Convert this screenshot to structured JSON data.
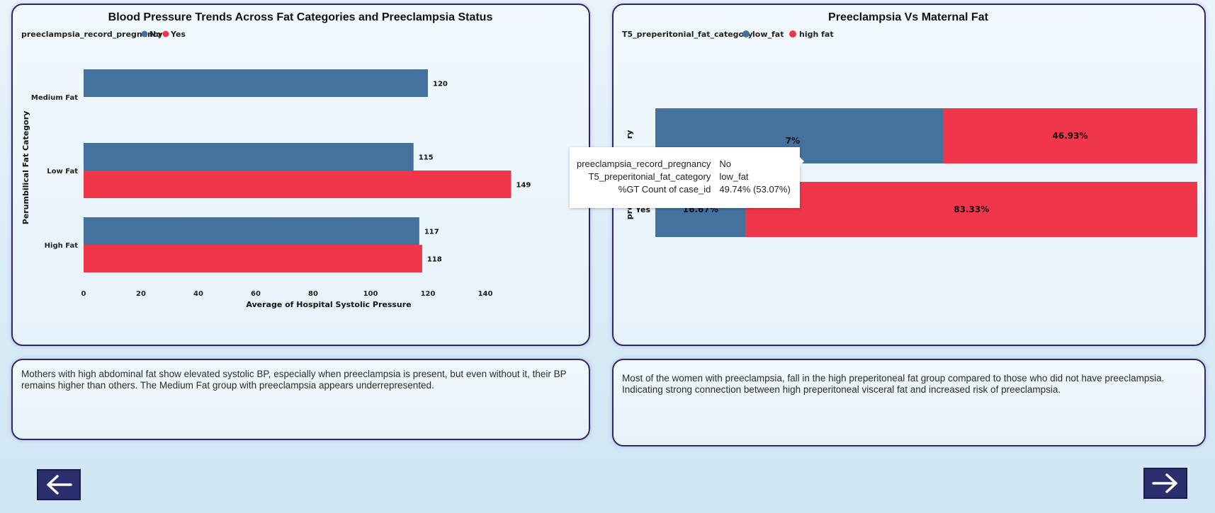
{
  "chart_data": [
    {
      "type": "bar",
      "orientation": "horizontal",
      "title": "Blood Pressure Trends Across Fat Categories and Preeclampsia Status",
      "legend_title": "preeclampsia_record_pregnancy",
      "categories": [
        "Medium Fat",
        "Low Fat",
        "High Fat"
      ],
      "series": [
        {
          "name": "No",
          "values": [
            120,
            115,
            117
          ],
          "color": "#44729f"
        },
        {
          "name": "Yes",
          "values": [
            null,
            149,
            118
          ],
          "color": "#ef364a"
        }
      ],
      "xlabel": "Average of Hospital Systolic Pressure",
      "ylabel": "Perumbilical Fat Category",
      "xticks": [
        "0",
        "20",
        "40",
        "60",
        "80",
        "100",
        "120",
        "140"
      ],
      "xlim": [
        0,
        160
      ]
    },
    {
      "type": "bar",
      "orientation": "horizontal",
      "stacked": "percent",
      "title": "Preeclampsia Vs Maternal Fat",
      "legend_title": "T5_preperitonial_fat_category",
      "categories": [
        "No",
        "Yes"
      ],
      "series": [
        {
          "name": "low_fat",
          "values": [
            53.07,
            16.67
          ],
          "labels": [
            "53.07%",
            "16.67%"
          ],
          "color": "#44729f"
        },
        {
          "name": "high fat",
          "values": [
            46.93,
            83.33
          ],
          "labels": [
            "46.93%",
            "83.33%"
          ],
          "color": "#ef364a"
        }
      ],
      "ylabel": "preeclampsia_record_pregnancy",
      "axis_label_visible": [
        "ry",
        "preperit"
      ]
    }
  ],
  "tooltip": {
    "rows": [
      {
        "key": "preeclampsia_record_pregnancy",
        "value": "No"
      },
      {
        "key": "T5_preperitonial_fat_category",
        "value": "low_fat"
      },
      {
        "key": "%GT Count of case_id",
        "value": "49.74% (53.07%)"
      }
    ],
    "covered_label_tail": "7%"
  },
  "insights": {
    "left": "Mothers with high abdominal fat show elevated systolic BP, especially when preeclampsia is present, but even without it, their BP remains higher than others. The Medium Fat group with preeclampsia appears underrepresented.",
    "right": "Most of the women with preeclampsia, fall in the high preperitoneal fat group compared to those who did not have preeclampsia. Indicating strong connection between high preperitoneal visceral fat and increased risk of preeclampsia."
  },
  "navigation": {
    "back_icon": "arrow-left-icon",
    "next_icon": "arrow-right-icon"
  }
}
